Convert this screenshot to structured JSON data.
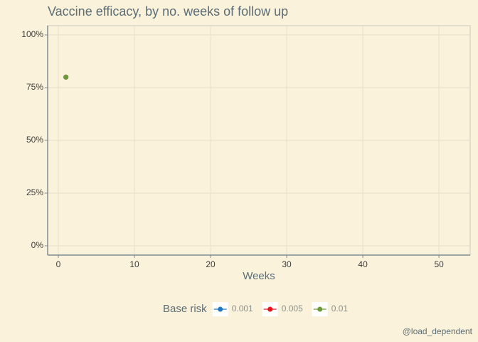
{
  "chart_data": {
    "type": "scatter",
    "title": "Vaccine efficacy, by no. weeks of follow up",
    "x_label": "Weeks",
    "legend_title": "Base risk",
    "caption": "@load_dependent",
    "series": [
      {
        "name": "0.001",
        "color": "#1f78c1",
        "x": [
          1
        ],
        "values": [
          80
        ]
      },
      {
        "name": "0.005",
        "color": "#e8141c",
        "x": [
          1
        ],
        "values": [
          80
        ]
      },
      {
        "name": "0.01",
        "color": "#6b9a3a",
        "x": [
          1
        ],
        "values": [
          80
        ]
      }
    ],
    "xlim": [
      -1.4,
      54.1
    ],
    "xticks": [
      0,
      10,
      20,
      30,
      40,
      50
    ],
    "ylim": [
      -4.4,
      104.4
    ],
    "yticks": [
      {
        "value": 0,
        "label": "0%"
      },
      {
        "value": 25,
        "label": "25%"
      },
      {
        "value": 50,
        "label": "50%"
      },
      {
        "value": 75,
        "label": "75%"
      },
      {
        "value": 100,
        "label": "100%"
      }
    ],
    "grid": true,
    "legend": "bottom"
  }
}
